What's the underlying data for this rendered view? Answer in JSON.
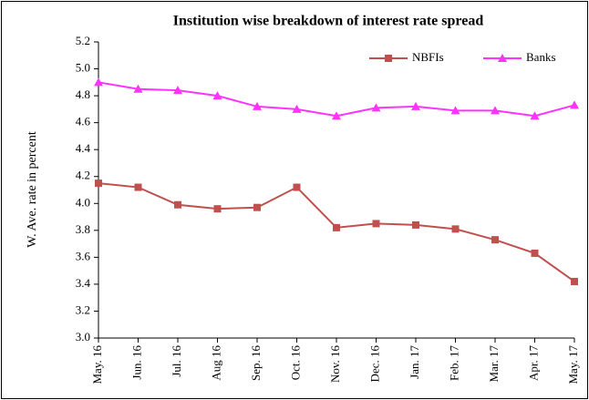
{
  "chart_data": {
    "type": "line",
    "title": "Institution wise breakdown of interest rate spread",
    "y_label": "W. Ave. rate in percent",
    "categories": [
      "May. 16",
      "Jun. 16",
      "Jul. 16",
      "Aug 16",
      "Sep. 16",
      "Oct. 16",
      "Nov. 16",
      "Dec. 16",
      "Jan. 17",
      "Feb. 17",
      "Mar. 17",
      "Apr. 17",
      "May. 17"
    ],
    "series": [
      {
        "name": "NBFIs",
        "color": "#c0504d",
        "marker": "square",
        "values": [
          4.15,
          4.12,
          3.99,
          3.96,
          3.97,
          4.12,
          3.82,
          3.85,
          3.84,
          3.81,
          3.73,
          3.63,
          3.42
        ]
      },
      {
        "name": "Banks",
        "color": "#ff33ff",
        "marker": "triangle",
        "values": [
          4.9,
          4.85,
          4.84,
          4.8,
          4.72,
          4.7,
          4.65,
          4.71,
          4.72,
          4.69,
          4.69,
          4.65,
          4.73
        ]
      }
    ],
    "ylim": [
      3.0,
      5.2
    ],
    "yticks": [
      {
        "value": 3.0,
        "label": "3.0"
      },
      3.2,
      3.4,
      3.6,
      3.8,
      {
        "value": 4.0,
        "label": "4.0"
      },
      4.2,
      4.4,
      4.6,
      4.8,
      {
        "value": 5.0,
        "label": "5.0"
      },
      5.2
    ],
    "grid": false,
    "legend": "top-right"
  }
}
